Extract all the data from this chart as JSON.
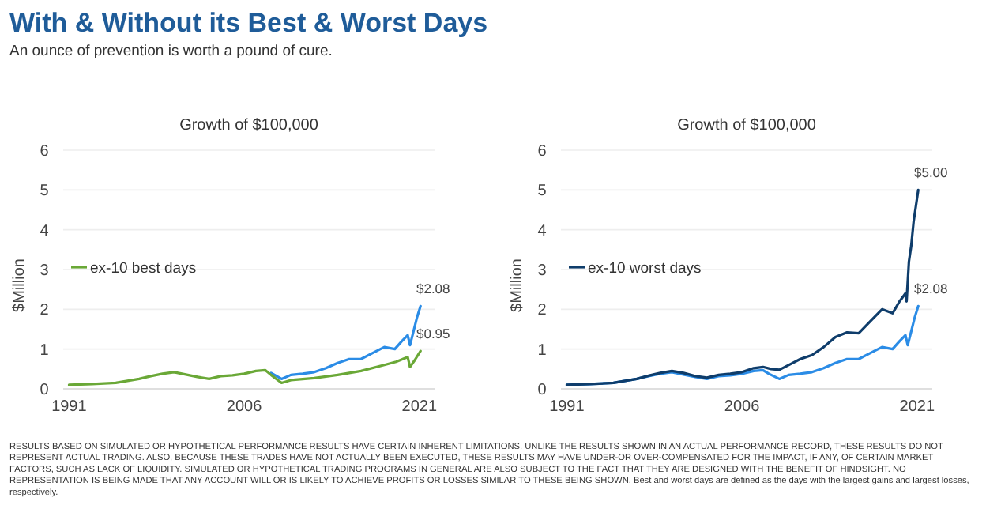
{
  "chart_data": [
    {
      "type": "other",
      "title": "With & Without its Best & Worst Days",
      "subtitle": "An ounce of prevention is worth a pound of cure.",
      "annotations": [
        "RESULTS BASED ON SIMULATED OR HYPOTHETICAL PERFORMANCE RESULTS HAVE CERTAIN INHERENT LIMITATIONS. UNLIKE THE RESULTS SHOWN IN AN ACTUAL PERFORMANCE RECORD, THESE RESULTS DO NOT REPRESENT ACTUAL TRADING. ALSO, BECAUSE THESE TRADES HAVE NOT ACTUALLY BEEN EXECUTED, THESE RESULTS MAY HAVE UNDER-OR OVER-COMPENSATED FOR THE IMPACT, IF ANY, OF CERTAIN MARKET FACTORS, SUCH AS LACK OF LIQUIDITY. SIMULATED OR HYPOTHETICAL TRADING PROGRAMS IN GENERAL ARE ALSO SUBJECT TO THE FACT THAT THEY ARE DESIGNED WITH THE BENEFIT OF HINDSIGHT. NO REPRESENTATION IS BEING MADE THAT ANY ACCOUNT WILL OR IS LIKELY TO ACHIEVE PROFITS OR LOSSES SIMILAR TO THESE BEING SHOWN. Best and worst days are defined as the days with the largest gains and largest losses, respectively."
      ]
    },
    {
      "type": "line",
      "title": "Growth of $100,000",
      "ylabel": "$Million",
      "xlim": [
        1990.5,
        2022.3
      ],
      "xticks": [
        1991,
        2006,
        2021
      ],
      "ylim": [
        0,
        6
      ],
      "yticks": [
        0,
        1,
        2,
        3,
        4,
        5,
        6
      ],
      "grid": "y",
      "legend": "left",
      "marker": "none",
      "line_style": "solid",
      "series": [
        {
          "color": "#2b8ce6",
          "x": [
            2008.3,
            2009.2,
            2010,
            2011,
            2012,
            2013,
            2014,
            2015,
            2016,
            2017,
            2018,
            2018.9,
            2019.5,
            2020,
            2020.2,
            2020.5,
            2020.8,
            2021.1
          ],
          "values": [
            0.4,
            0.25,
            0.35,
            0.38,
            0.42,
            0.52,
            0.65,
            0.75,
            0.75,
            0.9,
            1.05,
            1.0,
            1.2,
            1.35,
            1.1,
            1.45,
            1.8,
            2.08
          ],
          "value_labels": [
            null,
            null,
            null,
            null,
            null,
            null,
            null,
            null,
            null,
            null,
            null,
            null,
            null,
            null,
            null,
            null,
            null,
            "$2.08"
          ]
        },
        {
          "name": "ex-10 best days",
          "color": "#6aa837",
          "x": [
            1991,
            1993,
            1995,
            1997,
            1998,
            1999,
            2000,
            2001,
            2002,
            2003,
            2004,
            2005,
            2006,
            2007,
            2007.8,
            2008.3,
            2009.2,
            2010,
            2012,
            2014,
            2016,
            2018,
            2019,
            2020,
            2020.2,
            2020.6,
            2021.1
          ],
          "values": [
            0.1,
            0.12,
            0.15,
            0.25,
            0.32,
            0.38,
            0.42,
            0.36,
            0.3,
            0.25,
            0.32,
            0.34,
            0.38,
            0.45,
            0.47,
            0.35,
            0.15,
            0.22,
            0.27,
            0.35,
            0.45,
            0.6,
            0.68,
            0.8,
            0.55,
            0.72,
            0.95
          ],
          "value_labels": [
            null,
            null,
            null,
            null,
            null,
            null,
            null,
            null,
            null,
            null,
            null,
            null,
            null,
            null,
            null,
            null,
            null,
            null,
            null,
            null,
            null,
            null,
            null,
            null,
            null,
            null,
            "$0.95"
          ]
        }
      ]
    },
    {
      "type": "line",
      "title": "Growth of $100,000",
      "ylabel": "$Million",
      "xlim": [
        1990.5,
        2022.3
      ],
      "xticks": [
        1991,
        2006,
        2021
      ],
      "ylim": [
        0,
        6
      ],
      "yticks": [
        0,
        1,
        2,
        3,
        4,
        5,
        6
      ],
      "grid": "y",
      "legend": "left",
      "marker": "none",
      "line_style": "solid",
      "series": [
        {
          "color": "#2b8ce6",
          "x": [
            1991,
            1993,
            1995,
            1997,
            1998,
            1999,
            2000,
            2001,
            2002,
            2003,
            2004,
            2005,
            2006,
            2007,
            2007.8,
            2008.3,
            2009.2,
            2010,
            2011,
            2012,
            2013,
            2014,
            2015,
            2016,
            2017,
            2018,
            2018.9,
            2019.5,
            2020,
            2020.2,
            2020.5,
            2020.8,
            2021.1
          ],
          "values": [
            0.1,
            0.12,
            0.15,
            0.25,
            0.32,
            0.38,
            0.42,
            0.36,
            0.3,
            0.25,
            0.32,
            0.34,
            0.38,
            0.45,
            0.47,
            0.38,
            0.25,
            0.35,
            0.38,
            0.42,
            0.52,
            0.65,
            0.75,
            0.75,
            0.9,
            1.05,
            1.0,
            1.2,
            1.35,
            1.1,
            1.45,
            1.8,
            2.08
          ],
          "value_labels": [
            null,
            null,
            null,
            null,
            null,
            null,
            null,
            null,
            null,
            null,
            null,
            null,
            null,
            null,
            null,
            null,
            null,
            null,
            null,
            null,
            null,
            null,
            null,
            null,
            null,
            null,
            null,
            null,
            null,
            null,
            null,
            null,
            "$2.08"
          ]
        },
        {
          "name": "ex-10 worst days",
          "color": "#0f3d6b",
          "x": [
            1991,
            1993,
            1995,
            1997,
            1998,
            1999,
            2000,
            2001,
            2002,
            2003,
            2004,
            2005,
            2006,
            2007,
            2007.8,
            2008.5,
            2009.2,
            2010,
            2011,
            2012,
            2013,
            2014,
            2015,
            2016,
            2017,
            2018,
            2018.9,
            2019.5,
            2020,
            2020.1,
            2020.3,
            2020.5,
            2020.7,
            2020.9,
            2021.1
          ],
          "values": [
            0.1,
            0.12,
            0.15,
            0.25,
            0.33,
            0.4,
            0.45,
            0.4,
            0.32,
            0.28,
            0.35,
            0.38,
            0.42,
            0.52,
            0.55,
            0.5,
            0.48,
            0.6,
            0.75,
            0.85,
            1.05,
            1.3,
            1.42,
            1.4,
            1.7,
            2.0,
            1.9,
            2.2,
            2.4,
            2.2,
            3.2,
            3.6,
            4.2,
            4.6,
            5.0
          ],
          "value_labels": [
            null,
            null,
            null,
            null,
            null,
            null,
            null,
            null,
            null,
            null,
            null,
            null,
            null,
            null,
            null,
            null,
            null,
            null,
            null,
            null,
            null,
            null,
            null,
            null,
            null,
            null,
            null,
            null,
            null,
            null,
            null,
            null,
            null,
            null,
            "$5.00"
          ]
        }
      ]
    }
  ]
}
